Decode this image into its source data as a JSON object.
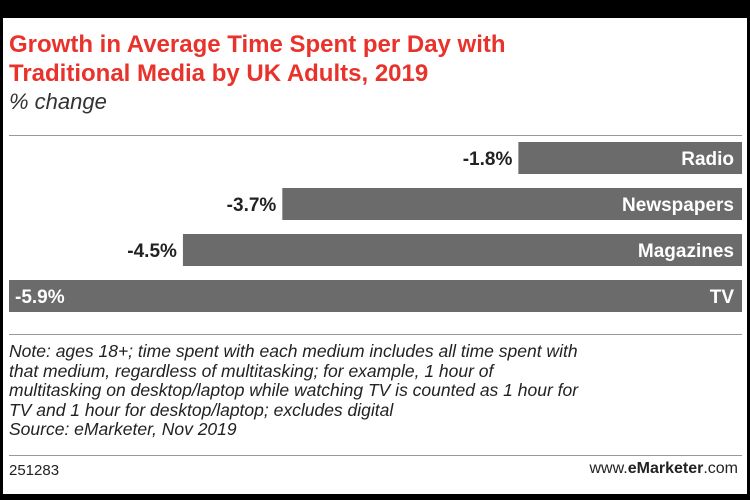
{
  "chart_data": {
    "type": "bar",
    "orientation": "horizontal",
    "title": "Growth in Average Time Spent per Day with Traditional Media by UK Adults, 2019",
    "subtitle": "% change",
    "categories": [
      "Radio",
      "Newspapers",
      "Magazines",
      "TV"
    ],
    "values": [
      -1.8,
      -3.7,
      -4.5,
      -5.9
    ],
    "value_labels": [
      "-1.8%",
      "-3.7%",
      "-4.5%",
      "-5.9%"
    ],
    "grid": false,
    "legend": "none",
    "bar_color": "#6b6b6b",
    "title_color": "#e8322b"
  },
  "header": {
    "title_line1": "Growth in Average Time Spent per Day with",
    "title_line2": "Traditional Media by UK Adults, 2019",
    "subtitle": "% change"
  },
  "footer": {
    "note_lines": [
      "Note: ages 18+; time spent with each medium includes all time spent with",
      "that medium, regardless of multitasking; for example, 1 hour of",
      "multitasking on desktop/laptop while watching TV is counted as 1 hour for",
      "TV and 1 hour for desktop/laptop; excludes digital",
      "Source: eMarketer, Nov 2019"
    ],
    "chart_id": "251283",
    "brand_prefix": "www.",
    "brand_bold": "eMarketer",
    "brand_suffix": ".com"
  }
}
